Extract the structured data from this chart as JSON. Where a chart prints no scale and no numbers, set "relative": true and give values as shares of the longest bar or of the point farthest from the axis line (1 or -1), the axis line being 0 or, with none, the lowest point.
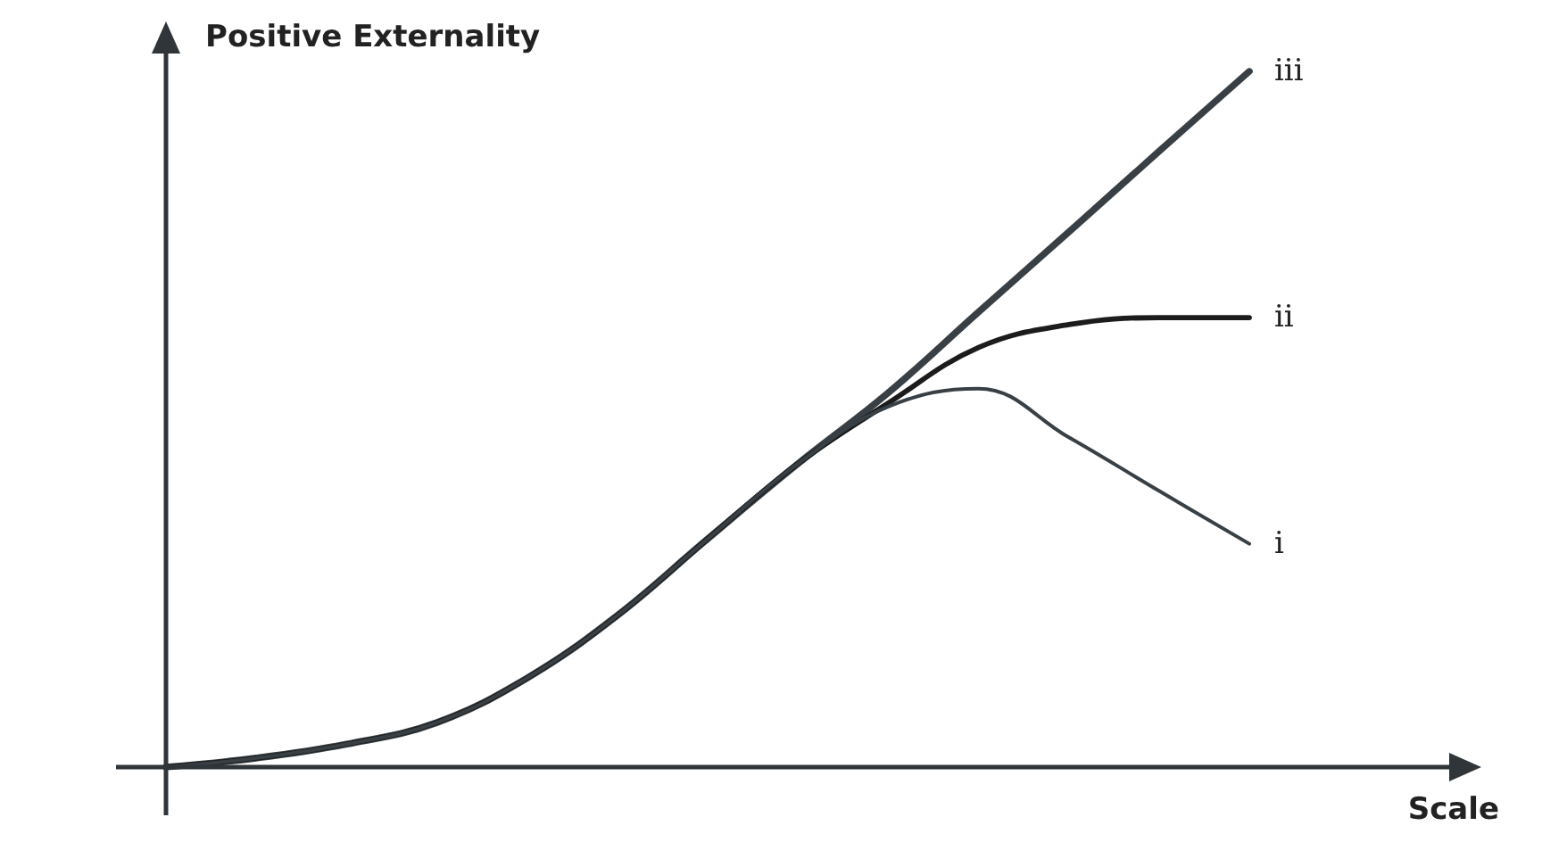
{
  "chart_data": {
    "type": "line",
    "relative": true,
    "xlabel": "Scale",
    "ylabel": "Positive Externality",
    "categories": [
      null,
      null,
      null,
      null,
      null,
      null,
      null,
      null,
      null,
      null,
      null,
      null,
      null
    ],
    "series": [
      {
        "name": "iii",
        "color": "#394045",
        "values": [
          0,
          0.013,
          0.033,
          0.064,
          0.128,
          0.218,
          0.328,
          0.436,
          0.538,
          0.654,
          0.769,
          0.885,
          1
        ]
      },
      {
        "name": "ii",
        "color": "#1c1c1c",
        "values": [
          0,
          0.013,
          0.033,
          0.064,
          0.128,
          0.218,
          0.328,
          0.436,
          0.523,
          0.603,
          0.636,
          0.646,
          0.646
        ]
      },
      {
        "name": "i",
        "color": "#394045",
        "values": [
          0,
          0.013,
          0.033,
          0.064,
          0.128,
          0.218,
          0.328,
          0.436,
          0.518,
          0.544,
          0.474,
          0.397,
          0.321
        ]
      }
    ],
    "grid": false,
    "legend": false,
    "marker": "none",
    "line_style": "solid"
  }
}
